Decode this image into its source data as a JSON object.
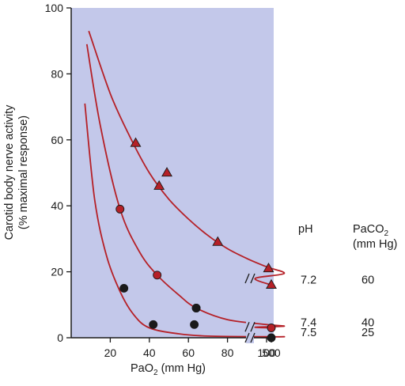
{
  "chart_data": {
    "type": "line",
    "title": "",
    "xlabel": "PaO",
    "xlabel_sub": "2",
    "xlabel_unit": " (mm Hg)",
    "ylabel_line1": "Carotid body nerve activity",
    "ylabel_line2": "(% maximal response)",
    "ylim": [
      0,
      100
    ],
    "yticks": [
      "0",
      "20",
      "40",
      "60",
      "80",
      "100"
    ],
    "xticks": [
      "20",
      "40",
      "60",
      "80",
      "100",
      "500"
    ],
    "x_axis_break": "between 100 and 500",
    "grid": false,
    "plot_background": "#c3c8ea",
    "curve_color": "#b52027",
    "legend": {
      "placement": "right",
      "ph_header": "pH",
      "paco2_header_line1": "PaCO",
      "paco2_header_sub": "2",
      "paco2_header_line2": "(mm Hg)"
    },
    "series": [
      {
        "ph": "7.2",
        "paco2": "60",
        "marker": "triangle",
        "color": "#b52027",
        "points": [
          [
            33,
            59
          ],
          [
            45,
            46
          ],
          [
            49,
            50
          ],
          [
            75,
            29
          ],
          [
            101,
            21
          ],
          [
            500,
            16
          ]
        ],
        "curve": [
          [
            9,
            93
          ],
          [
            20,
            74
          ],
          [
            30,
            61
          ],
          [
            40,
            50
          ],
          [
            50,
            42
          ],
          [
            60,
            36
          ],
          [
            70,
            31
          ],
          [
            80,
            27
          ],
          [
            90,
            24
          ],
          [
            100,
            21.5
          ],
          [
            109,
            19.5
          ],
          [
            120,
            18
          ],
          [
            500,
            16
          ]
        ]
      },
      {
        "ph": "7.4",
        "paco2": "40",
        "marker": "circle",
        "color": "#b52027",
        "points": [
          [
            25,
            39
          ],
          [
            44,
            19
          ],
          [
            64,
            9
          ],
          [
            500,
            3
          ]
        ],
        "curve": [
          [
            8,
            89
          ],
          [
            15,
            64
          ],
          [
            25,
            39
          ],
          [
            35,
            26
          ],
          [
            44,
            19
          ],
          [
            55,
            13
          ],
          [
            64,
            9
          ],
          [
            80,
            5.5
          ],
          [
            100,
            4
          ],
          [
            109,
            3.5
          ],
          [
            120,
            3.2
          ],
          [
            500,
            3
          ]
        ]
      },
      {
        "ph": "7.5",
        "paco2": "25",
        "marker": "circle",
        "color": "#1a1a1a",
        "points": [
          [
            27,
            15
          ],
          [
            42,
            4
          ],
          [
            63,
            4
          ],
          [
            64,
            9
          ],
          [
            500,
            0
          ]
        ],
        "curve": [
          [
            7,
            71
          ],
          [
            12,
            42
          ],
          [
            18,
            25
          ],
          [
            25,
            14
          ],
          [
            32,
            7
          ],
          [
            40,
            3
          ],
          [
            55,
            1.2
          ],
          [
            70,
            0.5
          ],
          [
            100,
            0.3
          ],
          [
            109,
            0.3
          ],
          [
            120,
            0.2
          ],
          [
            500,
            0
          ]
        ]
      }
    ]
  }
}
